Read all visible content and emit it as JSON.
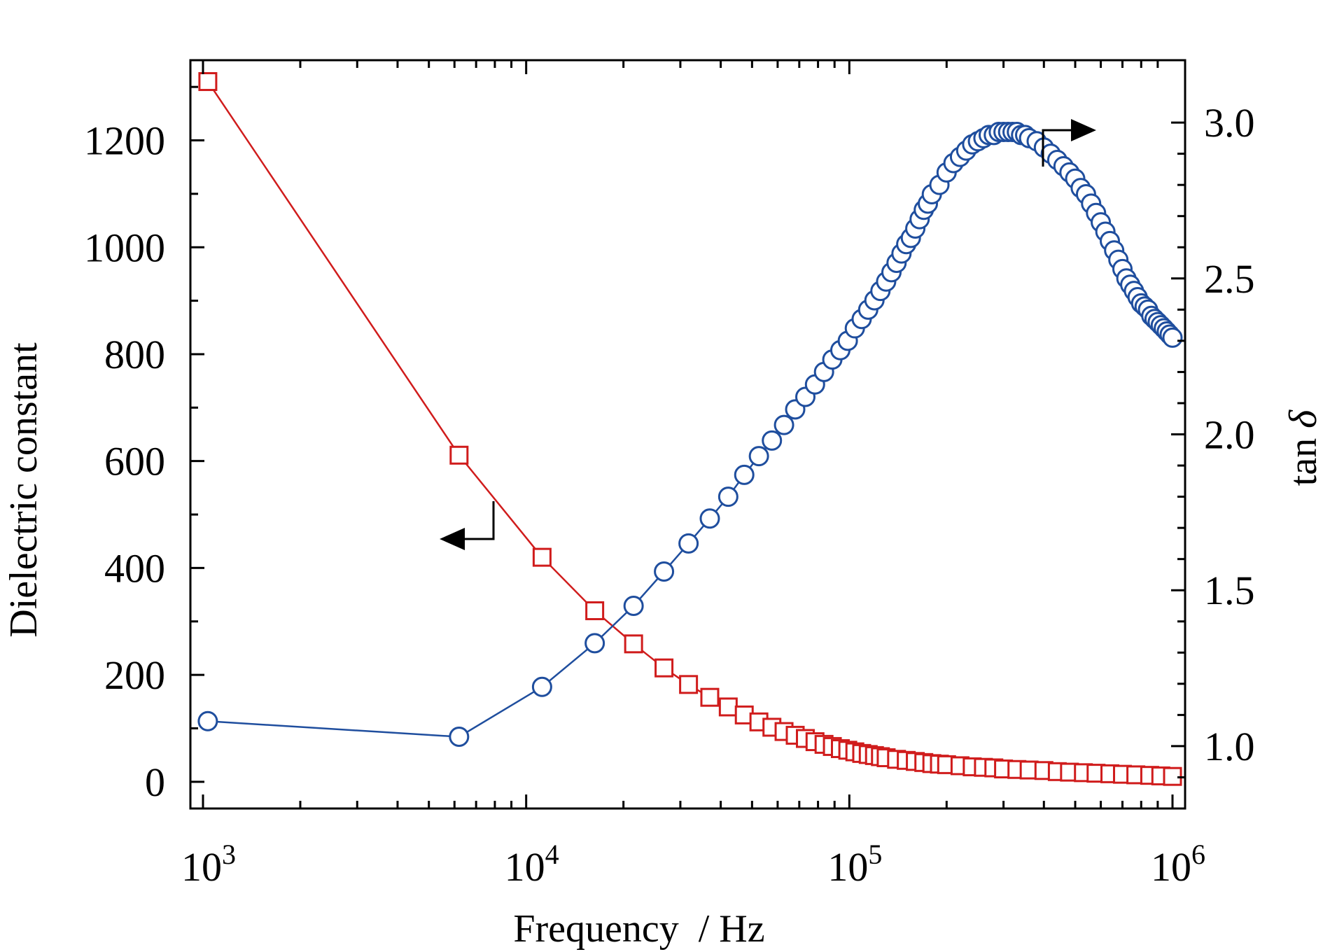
{
  "chart_data": {
    "type": "scatter",
    "xlabel": "Frequency  / Hz",
    "ylabel_left": "Dielectric constant",
    "ylabel_right": {
      "main": "tan ",
      "italic": "δ"
    },
    "x_scale": "log",
    "xlim": [
      1000,
      1000000
    ],
    "x_ticks": [
      {
        "value": 1000,
        "base": "10",
        "exp": "3"
      },
      {
        "value": 10000,
        "base": "10",
        "exp": "4"
      },
      {
        "value": 100000,
        "base": "10",
        "exp": "5"
      },
      {
        "value": 1000000,
        "base": "10",
        "exp": "6"
      }
    ],
    "ylim_left": [
      -50,
      1350
    ],
    "yticks_left": [
      "0",
      "200",
      "400",
      "600",
      "800",
      "1000",
      "1200"
    ],
    "ylim_right": [
      0.8,
      3.2
    ],
    "yticks_right": [
      "1.0",
      "1.5",
      "2.0",
      "2.5",
      "3.0"
    ],
    "grid": false,
    "legend": "none",
    "series": [
      {
        "axis": "left",
        "marker": "square",
        "color": "#d01c1c",
        "x": [
          1035,
          6200,
          11200,
          16300,
          21500,
          26700,
          31800,
          37000,
          42200,
          47300,
          52500,
          57600,
          62800,
          68000,
          73100,
          78300,
          83500,
          88600,
          93800,
          98900,
          104000,
          109200,
          114400,
          119600,
          124800,
          130000,
          140000,
          150000,
          160000,
          170000,
          180000,
          190000,
          200000,
          220000,
          240000,
          260000,
          280000,
          300000,
          330000,
          360000,
          400000,
          440000,
          480000,
          530000,
          580000,
          640000,
          700000,
          770000,
          850000,
          920000,
          1000000
        ],
        "values": [
          1310,
          611,
          420,
          320,
          258,
          213,
          182,
          158,
          140,
          125,
          112,
          102,
          94,
          87,
          81,
          75,
          70,
          66,
          62,
          59,
          56,
          53,
          51,
          49,
          47,
          45,
          42,
          40,
          38,
          36,
          34,
          33,
          32,
          30,
          28,
          27,
          26,
          24,
          23,
          22,
          21,
          19,
          18,
          17,
          16,
          15,
          14,
          13,
          12,
          11,
          10
        ]
      },
      {
        "axis": "right",
        "marker": "circle",
        "color": "#1f4e9e",
        "x": [
          1035,
          6200,
          11200,
          16300,
          21500,
          26700,
          31800,
          37000,
          42200,
          47300,
          52500,
          57600,
          62800,
          68000,
          73100,
          78300,
          83500,
          88600,
          93800,
          98900,
          104000,
          109200,
          114400,
          119600,
          124800,
          130000,
          135000,
          140000,
          145000,
          150000,
          155000,
          160000,
          165000,
          170000,
          175000,
          180000,
          190000,
          200000,
          210000,
          220000,
          230000,
          240000,
          250000,
          260000,
          270000,
          280000,
          290000,
          300000,
          310000,
          320000,
          330000,
          340000,
          350000,
          360000,
          380000,
          400000,
          420000,
          440000,
          460000,
          480000,
          500000,
          520000,
          540000,
          560000,
          580000,
          600000,
          620000,
          640000,
          660000,
          680000,
          700000,
          720000,
          740000,
          760000,
          780000,
          800000,
          820000,
          840000,
          860000,
          880000,
          900000,
          920000,
          940000,
          960000,
          980000,
          1000000
        ],
        "values": [
          1.08,
          1.03,
          1.19,
          1.33,
          1.45,
          1.56,
          1.65,
          1.73,
          1.8,
          1.87,
          1.93,
          1.98,
          2.03,
          2.08,
          2.12,
          2.16,
          2.2,
          2.24,
          2.27,
          2.3,
          2.34,
          2.37,
          2.4,
          2.43,
          2.46,
          2.49,
          2.52,
          2.55,
          2.58,
          2.61,
          2.63,
          2.66,
          2.69,
          2.72,
          2.74,
          2.77,
          2.8,
          2.84,
          2.87,
          2.89,
          2.91,
          2.93,
          2.94,
          2.95,
          2.96,
          2.96,
          2.97,
          2.97,
          2.97,
          2.97,
          2.97,
          2.96,
          2.96,
          2.95,
          2.94,
          2.92,
          2.9,
          2.88,
          2.86,
          2.84,
          2.82,
          2.79,
          2.77,
          2.74,
          2.71,
          2.68,
          2.65,
          2.62,
          2.59,
          2.56,
          2.53,
          2.5,
          2.48,
          2.46,
          2.44,
          2.42,
          2.41,
          2.4,
          2.38,
          2.37,
          2.36,
          2.35,
          2.34,
          2.33,
          2.32,
          2.31
        ]
      }
    ]
  }
}
